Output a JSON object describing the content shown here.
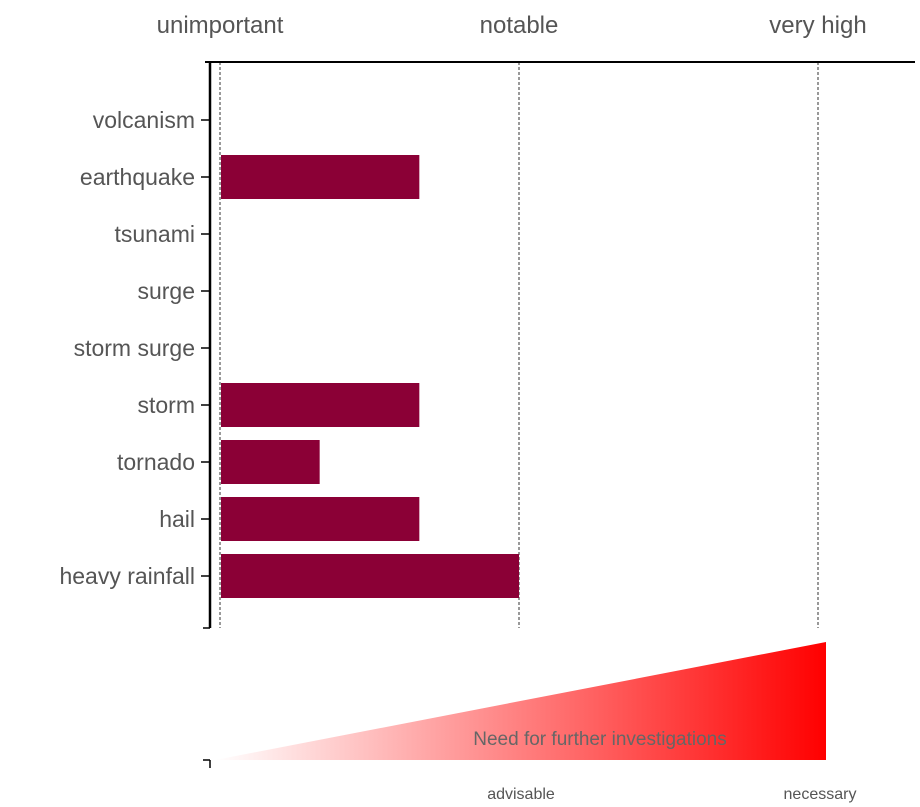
{
  "chart_data": {
    "type": "bar",
    "orientation": "horizontal",
    "categories": [
      "volcanism",
      "earthquake",
      "tsunami",
      "surge",
      "storm surge",
      "storm",
      "tornado",
      "hail",
      "heavy rainfall"
    ],
    "values": [
      0,
      2,
      0,
      0,
      0,
      2,
      1,
      2,
      3
    ],
    "xlim": [
      0,
      6
    ],
    "top_axis_labels": [
      {
        "value": 0,
        "label": "unimportant"
      },
      {
        "value": 3,
        "label": "notable"
      },
      {
        "value": 6,
        "label": "very high"
      }
    ],
    "bar_color": "#8b0036",
    "grid": "dashed vertical lines at top axis labels",
    "need_scale": {
      "title": "Need for further investigations",
      "labels": [
        {
          "value": 3,
          "label": "advisable"
        },
        {
          "value": 6,
          "label": "necessary"
        }
      ],
      "gradient_from": "#ffffff",
      "gradient_to": "#ff0000"
    }
  }
}
